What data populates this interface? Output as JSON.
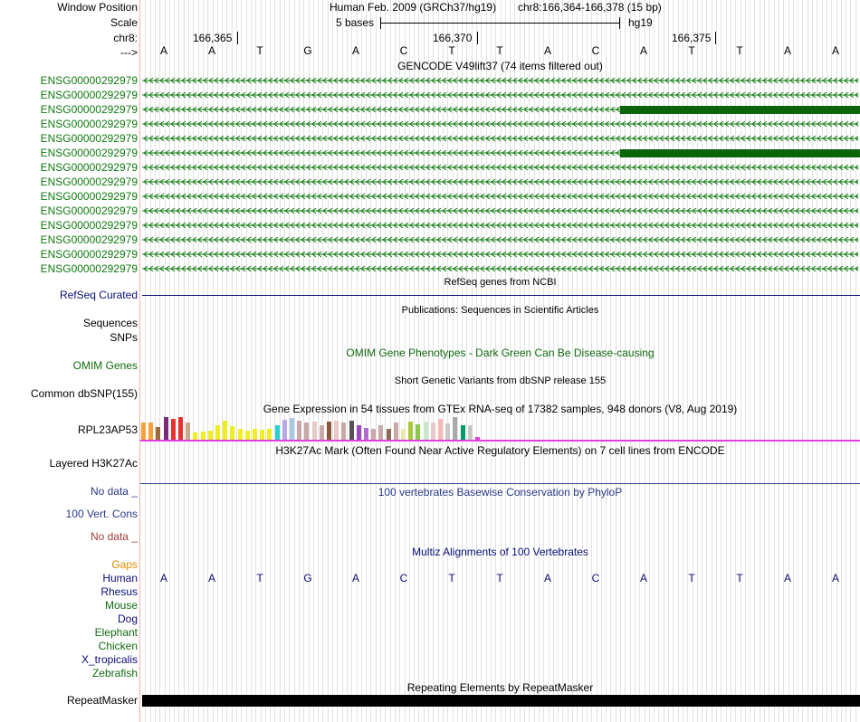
{
  "header": {
    "window_position_label": "Window Position",
    "assembly": "Human Feb. 2009 (GRCh37/hg19)",
    "position": "chr8:166,364-166,378 (15 bp)",
    "scale_label": "Scale",
    "scale_text": "5 bases",
    "scale_db": "hg19",
    "chrom_label": "chr8:",
    "strand_label": "--->",
    "ticks": [
      "166,365",
      "166,370",
      "166,375"
    ]
  },
  "bases": [
    "A",
    "A",
    "T",
    "G",
    "A",
    "C",
    "T",
    "T",
    "A",
    "C",
    "A",
    "T",
    "T",
    "A",
    "A"
  ],
  "gencode": {
    "title": "GENCODE V49lift37 (74 items filtered out)",
    "items": [
      {
        "name": "ENSG00000292979",
        "coding": false
      },
      {
        "name": "ENSG00000292979",
        "coding": false
      },
      {
        "name": "ENSG00000292979",
        "coding": true
      },
      {
        "name": "ENSG00000292979",
        "coding": false
      },
      {
        "name": "ENSG00000292979",
        "coding": false
      },
      {
        "name": "ENSG00000292979",
        "coding": true
      },
      {
        "name": "ENSG00000292979",
        "coding": false
      },
      {
        "name": "ENSG00000292979",
        "coding": false
      },
      {
        "name": "ENSG00000292979",
        "coding": false
      },
      {
        "name": "ENSG00000292979",
        "coding": false
      },
      {
        "name": "ENSG00000292979",
        "coding": false
      },
      {
        "name": "ENSG00000292979",
        "coding": false
      },
      {
        "name": "ENSG00000292979",
        "coding": false
      },
      {
        "name": "ENSG00000292979",
        "coding": false
      }
    ]
  },
  "refseq": {
    "title": "RefSeq genes from NCBI",
    "label": "RefSeq Curated"
  },
  "publications": {
    "title": "Publications: Sequences in Scientific Articles",
    "sequences_label": "Sequences",
    "snps_label": "SNPs"
  },
  "omim": {
    "title": "OMIM Gene Phenotypes - Dark Green Can Be Disease-causing",
    "label": "OMIM Genes"
  },
  "dbsnp": {
    "title": "Short Genetic Variants from dbSNP release 155",
    "label": "Common dbSNP(155)"
  },
  "gtex": {
    "title": "Gene Expression in 54 tissues from GTEx RNA-seq of 17382 samples, 948 donors (V8, Aug 2019)",
    "label": "RPL23AP53",
    "bars": [
      {
        "v": 0.72,
        "c": "#f7a13a"
      },
      {
        "v": 0.72,
        "c": "#f7a13a"
      },
      {
        "v": 0.55,
        "c": "#9a6a3a"
      },
      {
        "v": 0.95,
        "c": "#7a2a7a"
      },
      {
        "v": 0.9,
        "c": "#e8312f"
      },
      {
        "v": 0.95,
        "c": "#e8312f"
      },
      {
        "v": 0.72,
        "c": "#c8a888"
      },
      {
        "v": 0.3,
        "c": "#eeee22"
      },
      {
        "v": 0.35,
        "c": "#eeee22"
      },
      {
        "v": 0.38,
        "c": "#eeee22"
      },
      {
        "v": 0.6,
        "c": "#eeee22"
      },
      {
        "v": 0.82,
        "c": "#eeee22"
      },
      {
        "v": 0.58,
        "c": "#eeee22"
      },
      {
        "v": 0.45,
        "c": "#eeee22"
      },
      {
        "v": 0.4,
        "c": "#eeee22"
      },
      {
        "v": 0.45,
        "c": "#eeee22"
      },
      {
        "v": 0.42,
        "c": "#eeee22"
      },
      {
        "v": 0.45,
        "c": "#eeee22"
      },
      {
        "v": 0.6,
        "c": "#2ad0d0"
      },
      {
        "v": 0.85,
        "c": "#b8a8e8"
      },
      {
        "v": 0.92,
        "c": "#a8c8e8"
      },
      {
        "v": 0.8,
        "c": "#c8a8a8"
      },
      {
        "v": 0.72,
        "c": "#c8a8a8"
      },
      {
        "v": 0.75,
        "c": "#e8c8c8"
      },
      {
        "v": 0.6,
        "c": "#c8a8a8"
      },
      {
        "v": 0.75,
        "c": "#8a5a3a"
      },
      {
        "v": 0.8,
        "c": "#e8c8c8"
      },
      {
        "v": 0.72,
        "c": "#c8a8a8"
      },
      {
        "v": 0.82,
        "c": "#555555"
      },
      {
        "v": 0.6,
        "c": "#9b4bc0"
      },
      {
        "v": 0.5,
        "c": "#b06ad0"
      },
      {
        "v": 0.45,
        "c": "#c8a8a8"
      },
      {
        "v": 0.6,
        "c": "#c8a8a8"
      },
      {
        "v": 0.45,
        "c": "#8a6a5a"
      },
      {
        "v": 0.72,
        "c": "#c8a8a8"
      },
      {
        "v": 0.45,
        "c": "#e8e8a8"
      },
      {
        "v": 0.78,
        "c": "#a8c838"
      },
      {
        "v": 0.65,
        "c": "#8ac84a"
      },
      {
        "v": 0.75,
        "c": "#c8e8c8"
      },
      {
        "v": 0.72,
        "c": "#e8c8c8"
      },
      {
        "v": 0.88,
        "c": "#f8b8b8"
      },
      {
        "v": 0.7,
        "c": "#c8c8c8"
      },
      {
        "v": 0.95,
        "c": "#aaaaaa"
      },
      {
        "v": 0.62,
        "c": "#009966"
      },
      {
        "v": 0.62,
        "c": "#c8c8c8"
      },
      {
        "v": 0.12,
        "c": "#e040e0"
      }
    ]
  },
  "h3k27ac": {
    "title": "H3K27Ac Mark (Often Found Near Active Regulatory Elements) on 7 cell lines from ENCODE",
    "label": "Layered H3K27Ac"
  },
  "phylop": {
    "nodata": "No data _",
    "title": "100 vertebrates Basewise Conservation by PhyloP",
    "label": "100 Vert. Cons",
    "nodata2": "No data _"
  },
  "multiz": {
    "title": "Multiz Alignments of 100 Vertebrates",
    "gaps_label": "Gaps",
    "species": [
      {
        "name": "Human",
        "color": "#0c0c78"
      },
      {
        "name": "Rhesus",
        "color": "#0c0c78"
      },
      {
        "name": "Mouse",
        "color": "#0f6b0f"
      },
      {
        "name": "Dog",
        "color": "#0c0c78"
      },
      {
        "name": "Elephant",
        "color": "#0f6b0f"
      },
      {
        "name": "Chicken",
        "color": "#0f6b0f"
      },
      {
        "name": "X_tropicalis",
        "color": "#0c0c78"
      },
      {
        "name": "Zebrafish",
        "color": "#0f6b0f"
      }
    ]
  },
  "repeatmasker": {
    "title": "Repeating Elements by RepeatMasker",
    "label": "RepeatMasker"
  },
  "colors": {
    "gencode_green": "#0f7a0f",
    "coding_green": "#0a640a",
    "refseq_navy": "#0c0c78",
    "pink": "#e040e0",
    "orange": "#e88a00",
    "brown": "#a03a3a"
  }
}
